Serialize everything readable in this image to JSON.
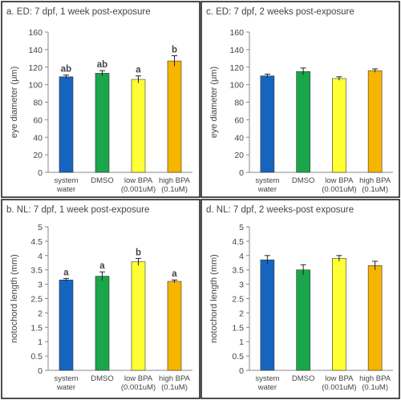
{
  "colors": {
    "system_water": "#1565c0",
    "dmso": "#1aa64a",
    "low_bpa": "#ffff33",
    "high_bpa": "#f7b500",
    "border": "#222222",
    "text": "#444444"
  },
  "chart_data": [
    {
      "type": "bar",
      "title": "a. ED: 7 dpf, 1 week post-exposure",
      "ylabel": "eye diameter (μm)",
      "categories": [
        [
          "system",
          "water"
        ],
        [
          "DMSO"
        ],
        [
          "low BPA",
          "(0.001uM)"
        ],
        [
          "high BPA",
          "(0.1uM)"
        ]
      ],
      "values": [
        109,
        113,
        106,
        127
      ],
      "errors": [
        2,
        3,
        4,
        6
      ],
      "significance": [
        "ab",
        "ab",
        "a",
        "b"
      ],
      "ylim": [
        0,
        160
      ],
      "yticks": [
        "0",
        "20",
        "40",
        "60",
        "80",
        "100",
        "120",
        "140",
        "160"
      ],
      "grid": false
    },
    {
      "type": "bar",
      "title": "c. ED: 7 dpf, 2 weeks post-exposure",
      "ylabel": "eye diameter (μm)",
      "categories": [
        [
          "system",
          "water"
        ],
        [
          "DMSO"
        ],
        [
          "low BPA",
          "(0.001uM)"
        ],
        [
          "high BPA",
          "(0.1uM)"
        ]
      ],
      "values": [
        110,
        115,
        107,
        116
      ],
      "errors": [
        2,
        4,
        2,
        2
      ],
      "significance": [
        "",
        "",
        "",
        ""
      ],
      "ylim": [
        0,
        160
      ],
      "yticks": [
        "0",
        "20",
        "40",
        "60",
        "80",
        "100",
        "120",
        "140",
        "160"
      ],
      "grid": false
    },
    {
      "type": "bar",
      "title": "b. NL: 7 dpf, 1 week post-exposure",
      "ylabel": "notochord length (mm)",
      "categories": [
        [
          "system",
          "water"
        ],
        [
          "DMSO"
        ],
        [
          "low BPA",
          "(0.001uM)"
        ],
        [
          "high BPA",
          "(0.1uM)"
        ]
      ],
      "values": [
        3.15,
        3.28,
        3.78,
        3.1
      ],
      "errors": [
        0.05,
        0.15,
        0.12,
        0.05
      ],
      "significance": [
        "a",
        "a",
        "b",
        "a"
      ],
      "ylim": [
        0,
        5
      ],
      "yticks": [
        "0",
        "0.5",
        "1",
        "1.5",
        "2",
        "2.5",
        "3",
        "3.5",
        "4",
        "4.5",
        "5"
      ],
      "grid": false
    },
    {
      "type": "bar",
      "title": "d. NL: 7 dpf, 2 weeks-post exposure",
      "ylabel": "notochord length (mm)",
      "categories": [
        [
          "system",
          "water"
        ],
        [
          "DMSO"
        ],
        [
          "low BPA",
          "(0.001uM)"
        ],
        [
          "high BPA",
          "(0.1uM)"
        ]
      ],
      "values": [
        3.85,
        3.5,
        3.9,
        3.65
      ],
      "errors": [
        0.15,
        0.18,
        0.1,
        0.15
      ],
      "significance": [
        "",
        "",
        "",
        ""
      ],
      "ylim": [
        0,
        5
      ],
      "yticks": [
        "0",
        "0.5",
        "1",
        "1.5",
        "2",
        "2.5",
        "3",
        "3.5",
        "4",
        "4.5",
        "5"
      ],
      "grid": false
    }
  ]
}
